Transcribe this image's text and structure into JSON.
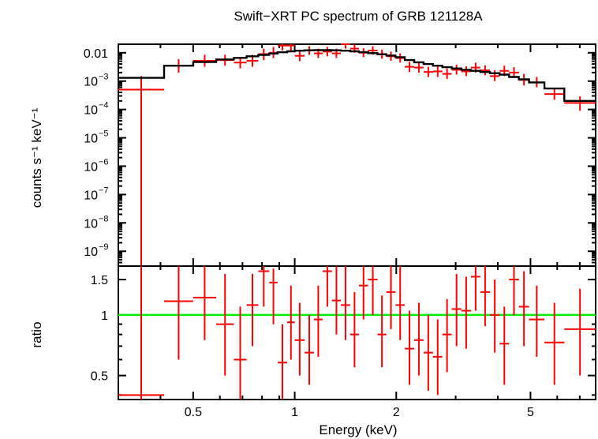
{
  "chart_data": [
    {
      "type": "scatter",
      "title": "Swift−XRT PC spectrum of GRB 121128A",
      "xlabel": "",
      "ylabel": "counts s⁻¹ keV⁻¹",
      "xscale": "log",
      "yscale": "log",
      "xlim": [
        0.3,
        7.8
      ],
      "ylim": [
        3e-10,
        0.02
      ],
      "ytick_labels": [
        {
          "label": "0.01",
          "value": 0.01,
          "exp": ""
        },
        {
          "label": "10",
          "value": 0.001,
          "exp": "−3"
        },
        {
          "label": "10",
          "value": 0.0001,
          "exp": "−4"
        },
        {
          "label": "10",
          "value": 1e-05,
          "exp": "−5"
        },
        {
          "label": "10",
          "value": 1e-06,
          "exp": "−6"
        },
        {
          "label": "10",
          "value": 1e-07,
          "exp": "−7"
        },
        {
          "label": "10",
          "value": 1e-08,
          "exp": "−8"
        },
        {
          "label": "10",
          "value": 1e-09,
          "exp": "−9"
        }
      ],
      "series": [
        {
          "role": "data",
          "color": "#ff0000",
          "points": [
            [
              0.3,
              0.41,
              0.0005,
              3e-10,
              0.0015
            ],
            [
              0.41,
              0.5,
              0.0035,
              0.002,
              0.006
            ],
            [
              0.5,
              0.585,
              0.0052,
              0.0032,
              0.0085
            ],
            [
              0.585,
              0.66,
              0.0055,
              0.0035,
              0.0085
            ],
            [
              0.66,
              0.72,
              0.0045,
              0.0028,
              0.007
            ],
            [
              0.72,
              0.78,
              0.0052,
              0.0032,
              0.0085
            ],
            [
              0.78,
              0.84,
              0.009,
              0.0055,
              0.014
            ],
            [
              0.84,
              0.89,
              0.01,
              0.0065,
              0.016
            ],
            [
              0.89,
              0.95,
              0.018,
              0.012,
              0.026
            ],
            [
              0.95,
              1.0,
              0.018,
              0.012,
              0.026
            ],
            [
              1.0,
              1.07,
              0.0078,
              0.005,
              0.0115
            ],
            [
              1.07,
              1.14,
              0.012,
              0.0085,
              0.017
            ],
            [
              1.14,
              1.21,
              0.0095,
              0.0065,
              0.014
            ],
            [
              1.21,
              1.29,
              0.011,
              0.0075,
              0.016
            ],
            [
              1.29,
              1.37,
              0.0095,
              0.0065,
              0.014
            ],
            [
              1.37,
              1.46,
              0.02,
              0.014,
              0.028
            ],
            [
              1.46,
              1.55,
              0.014,
              0.01,
              0.02
            ],
            [
              1.55,
              1.65,
              0.01,
              0.007,
              0.0145
            ],
            [
              1.65,
              1.76,
              0.012,
              0.0085,
              0.017
            ],
            [
              1.76,
              1.87,
              0.009,
              0.0062,
              0.013
            ],
            [
              1.87,
              1.99,
              0.0075,
              0.0052,
              0.011
            ],
            [
              1.99,
              2.12,
              0.0065,
              0.0045,
              0.0095
            ],
            [
              2.12,
              2.26,
              0.0032,
              0.0021,
              0.0048
            ],
            [
              2.26,
              2.41,
              0.003,
              0.002,
              0.0045
            ],
            [
              2.41,
              2.57,
              0.0021,
              0.0014,
              0.0032
            ],
            [
              2.57,
              2.74,
              0.0022,
              0.0014,
              0.0033
            ],
            [
              2.74,
              2.92,
              0.0018,
              0.0012,
              0.0028
            ],
            [
              2.92,
              3.12,
              0.0025,
              0.0017,
              0.0038
            ],
            [
              3.12,
              3.33,
              0.0022,
              0.0015,
              0.0033
            ],
            [
              3.33,
              3.55,
              0.003,
              0.002,
              0.0045
            ],
            [
              3.55,
              3.79,
              0.0024,
              0.0016,
              0.0036
            ],
            [
              3.79,
              4.05,
              0.0015,
              0.001,
              0.0024
            ],
            [
              4.05,
              4.32,
              0.0023,
              0.0015,
              0.0035
            ],
            [
              4.32,
              4.62,
              0.002,
              0.0013,
              0.0031
            ],
            [
              4.62,
              4.95,
              0.0011,
              0.0007,
              0.0018
            ],
            [
              4.95,
              5.5,
              0.0009,
              0.0006,
              0.0014
            ],
            [
              5.5,
              6.3,
              0.00035,
              0.00022,
              0.00055
            ],
            [
              6.3,
              7.8,
              0.00017,
              9e-05,
              0.00029
            ]
          ]
        },
        {
          "role": "model",
          "color": "#000000",
          "steps": [
            [
              0.3,
              0.41,
              0.0013
            ],
            [
              0.41,
              0.5,
              0.0035
            ],
            [
              0.5,
              0.585,
              0.0047
            ],
            [
              0.585,
              0.66,
              0.0058
            ],
            [
              0.66,
              0.72,
              0.0066
            ],
            [
              0.72,
              0.78,
              0.0075
            ],
            [
              0.78,
              0.84,
              0.0084
            ],
            [
              0.84,
              0.89,
              0.0094
            ],
            [
              0.89,
              0.95,
              0.0104
            ],
            [
              0.95,
              1.0,
              0.0112
            ],
            [
              1.0,
              1.07,
              0.0118
            ],
            [
              1.07,
              1.14,
              0.0122
            ],
            [
              1.14,
              1.21,
              0.0124
            ],
            [
              1.21,
              1.29,
              0.0124
            ],
            [
              1.29,
              1.37,
              0.0122
            ],
            [
              1.37,
              1.46,
              0.0118
            ],
            [
              1.46,
              1.55,
              0.0112
            ],
            [
              1.55,
              1.65,
              0.0105
            ],
            [
              1.65,
              1.76,
              0.0097
            ],
            [
              1.76,
              1.87,
              0.0088
            ],
            [
              1.87,
              1.99,
              0.008
            ],
            [
              1.99,
              2.12,
              0.007
            ],
            [
              2.12,
              2.26,
              0.0055
            ],
            [
              2.26,
              2.41,
              0.0046
            ],
            [
              2.41,
              2.57,
              0.004
            ],
            [
              2.57,
              2.74,
              0.0035
            ],
            [
              2.74,
              2.92,
              0.0031
            ],
            [
              2.92,
              3.12,
              0.0028
            ],
            [
              3.12,
              3.33,
              0.0025
            ],
            [
              3.33,
              3.55,
              0.0023
            ],
            [
              3.55,
              3.79,
              0.0021
            ],
            [
              3.79,
              4.05,
              0.0019
            ],
            [
              4.05,
              4.32,
              0.0017
            ],
            [
              4.32,
              4.62,
              0.0014
            ],
            [
              4.62,
              4.95,
              0.00115
            ],
            [
              4.95,
              5.5,
              0.0009
            ],
            [
              5.5,
              6.3,
              0.00055
            ],
            [
              6.3,
              7.8,
              0.0002
            ]
          ]
        }
      ]
    },
    {
      "type": "scatter",
      "title": "",
      "xlabel": "Energy (keV)",
      "ylabel": "ratio",
      "xscale": "log",
      "yscale": "log",
      "xlim": [
        0.3,
        7.8
      ],
      "ylim": [
        0.38,
        1.75
      ],
      "ytick_labels": [
        {
          "label": "0.5",
          "value": 0.5
        },
        {
          "label": "1",
          "value": 1
        },
        {
          "label": "1.5",
          "value": 1.5
        }
      ],
      "xtick_labels": [
        {
          "label": "0.5",
          "value": 0.5
        },
        {
          "label": "1",
          "value": 1
        },
        {
          "label": "2",
          "value": 2
        },
        {
          "label": "5",
          "value": 5
        }
      ],
      "reference_line": {
        "value": 1,
        "color": "#00ee00"
      },
      "series": [
        {
          "role": "ratio",
          "color": "#ff0000",
          "points": [
            [
              0.3,
              0.41,
              0.4,
              0.38,
              1.75
            ],
            [
              0.41,
              0.5,
              1.17,
              0.6,
              1.75
            ],
            [
              0.5,
              0.585,
              1.22,
              0.75,
              1.75
            ],
            [
              0.585,
              0.66,
              0.9,
              0.5,
              1.6
            ],
            [
              0.66,
              0.72,
              0.6,
              0.38,
              1.1
            ],
            [
              0.72,
              0.78,
              1.12,
              0.7,
              1.6
            ],
            [
              0.78,
              0.84,
              1.65,
              1.1,
              1.75
            ],
            [
              0.84,
              0.89,
              1.45,
              0.9,
              1.7
            ],
            [
              0.89,
              0.95,
              0.58,
              0.38,
              0.9
            ],
            [
              0.95,
              1.0,
              0.92,
              0.6,
              1.4
            ],
            [
              1.0,
              1.07,
              0.75,
              0.5,
              1.15
            ],
            [
              1.07,
              1.14,
              0.65,
              0.45,
              1.0
            ],
            [
              1.14,
              1.21,
              0.95,
              0.62,
              1.4
            ],
            [
              1.21,
              1.29,
              1.65,
              1.1,
              1.75
            ],
            [
              1.29,
              1.37,
              1.18,
              0.8,
              1.75
            ],
            [
              1.37,
              1.46,
              1.12,
              0.75,
              1.75
            ],
            [
              1.46,
              1.55,
              0.8,
              0.55,
              1.3
            ],
            [
              1.55,
              1.65,
              1.4,
              0.95,
              1.75
            ],
            [
              1.65,
              1.76,
              1.5,
              1.0,
              1.75
            ],
            [
              1.76,
              1.87,
              0.8,
              0.55,
              1.25
            ],
            [
              1.87,
              1.99,
              1.3,
              0.85,
              1.75
            ],
            [
              1.99,
              2.12,
              1.12,
              0.75,
              1.75
            ],
            [
              2.12,
              2.26,
              0.68,
              0.45,
              1.05
            ],
            [
              2.26,
              2.41,
              0.75,
              0.5,
              1.15
            ],
            [
              2.41,
              2.57,
              0.65,
              0.42,
              1.0
            ],
            [
              2.57,
              2.74,
              0.62,
              0.4,
              0.95
            ],
            [
              2.74,
              2.92,
              0.8,
              0.52,
              1.2
            ],
            [
              2.92,
              3.12,
              1.07,
              0.7,
              1.6
            ],
            [
              3.12,
              3.33,
              1.05,
              0.68,
              1.55
            ],
            [
              3.33,
              3.55,
              1.55,
              1.05,
              1.75
            ],
            [
              3.55,
              3.79,
              1.3,
              0.88,
              1.75
            ],
            [
              3.79,
              4.05,
              1.0,
              0.65,
              1.5
            ],
            [
              4.05,
              4.32,
              0.72,
              0.45,
              1.1
            ],
            [
              4.32,
              4.62,
              1.5,
              1.0,
              1.75
            ],
            [
              4.62,
              4.95,
              1.1,
              0.7,
              1.65
            ],
            [
              4.95,
              5.5,
              0.95,
              0.62,
              1.4
            ],
            [
              5.5,
              6.3,
              0.73,
              0.45,
              1.15
            ],
            [
              6.3,
              7.8,
              0.85,
              0.5,
              1.35
            ]
          ]
        }
      ]
    }
  ]
}
